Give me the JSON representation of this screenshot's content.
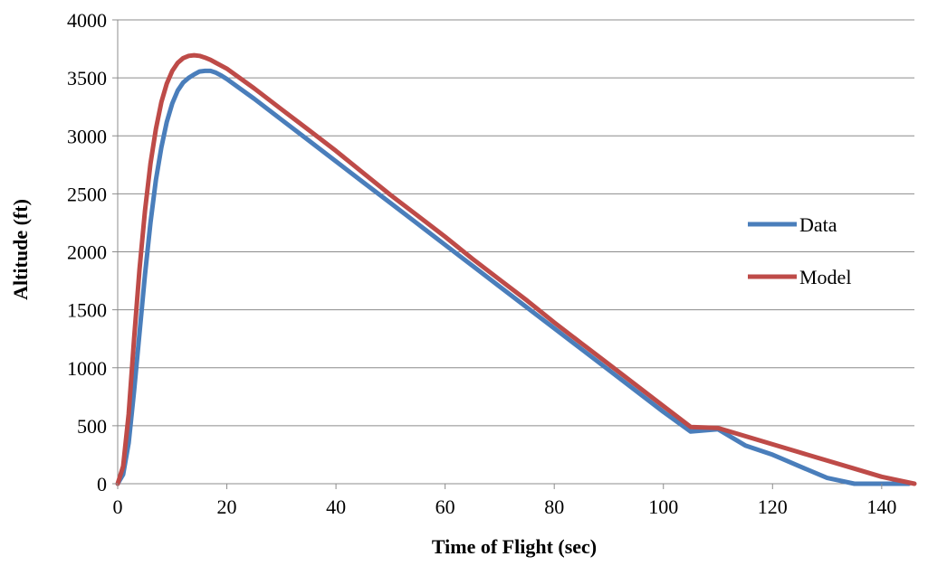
{
  "chart_data": {
    "type": "line",
    "title": "",
    "xlabel": "Time of Flight (sec)",
    "ylabel": "Altitude (ft)",
    "xlim": [
      0,
      146
    ],
    "ylim": [
      0,
      4000
    ],
    "x_ticks": [
      0,
      20,
      40,
      60,
      80,
      100,
      120,
      140
    ],
    "y_ticks": [
      0,
      500,
      1000,
      1500,
      2000,
      2500,
      3000,
      3500,
      4000
    ],
    "grid": "horizontal",
    "legend_position": "right",
    "series": [
      {
        "name": "Data",
        "color": "#4a7ebb",
        "x": [
          0,
          1,
          2,
          3,
          4,
          5,
          6,
          7,
          8,
          9,
          10,
          11,
          12,
          13,
          14,
          15,
          16,
          17,
          18,
          19,
          20,
          25,
          30,
          35,
          40,
          45,
          50,
          55,
          60,
          65,
          70,
          75,
          80,
          85,
          90,
          95,
          100,
          105,
          110,
          115,
          120,
          125,
          130,
          135,
          136,
          140,
          145
        ],
        "y": [
          0,
          80,
          350,
          800,
          1300,
          1800,
          2250,
          2620,
          2900,
          3120,
          3280,
          3390,
          3460,
          3500,
          3530,
          3555,
          3560,
          3560,
          3545,
          3520,
          3490,
          3320,
          3140,
          2960,
          2780,
          2600,
          2420,
          2240,
          2060,
          1880,
          1700,
          1520,
          1340,
          1160,
          980,
          800,
          620,
          450,
          470,
          330,
          250,
          150,
          50,
          0,
          0,
          0,
          0
        ]
      },
      {
        "name": "Model",
        "color": "#be4b48",
        "x": [
          0,
          1,
          2,
          3,
          4,
          5,
          6,
          7,
          8,
          9,
          10,
          11,
          12,
          13,
          14,
          15,
          16,
          17,
          18,
          20,
          25,
          30,
          35,
          40,
          45,
          50,
          55,
          60,
          65,
          70,
          75,
          80,
          85,
          90,
          95,
          100,
          105,
          110,
          115,
          120,
          125,
          130,
          135,
          140,
          146
        ],
        "y": [
          0,
          150,
          600,
          1250,
          1850,
          2350,
          2760,
          3060,
          3290,
          3450,
          3560,
          3630,
          3670,
          3690,
          3695,
          3690,
          3675,
          3655,
          3630,
          3580,
          3410,
          3230,
          3050,
          2870,
          2680,
          2490,
          2310,
          2130,
          1940,
          1760,
          1580,
          1390,
          1210,
          1030,
          850,
          670,
          490,
          480,
          410,
          340,
          270,
          200,
          130,
          60,
          0
        ]
      }
    ]
  }
}
